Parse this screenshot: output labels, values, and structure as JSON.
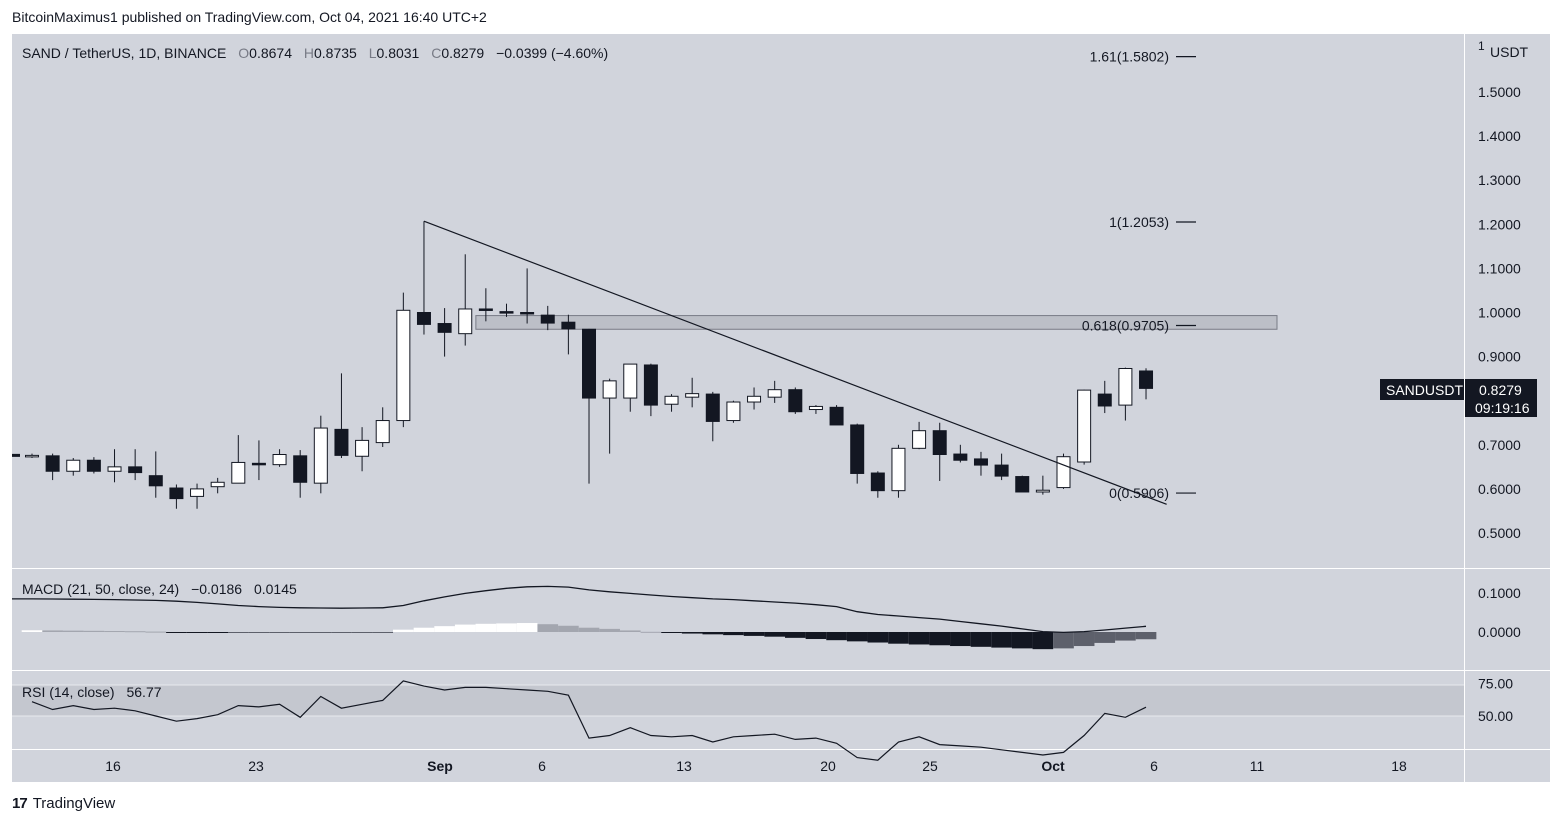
{
  "header": {
    "text": "BitcoinMaximus1 published on TradingView.com, Oct 04, 2021 16:40 UTC+2"
  },
  "footer": {
    "logo": "17",
    "brand": "TradingView"
  },
  "legend": {
    "symbol": "SAND / TetherUS, 1D, BINANCE",
    "o_label": "O",
    "o": "0.8674",
    "h_label": "H",
    "h": "0.8735",
    "l_label": "L",
    "l": "0.8031",
    "c_label": "C",
    "c": "0.8279",
    "change": "−0.0399 (−4.60%)"
  },
  "price_scale": {
    "unit": "USDT",
    "top_label": "1",
    "ticks": [
      "1.5000",
      "1.4000",
      "1.3000",
      "1.2000",
      "1.1000",
      "1.0000",
      "0.9000",
      "0.8000",
      "0.7000",
      "0.6000",
      "0.5000"
    ]
  },
  "last_price": {
    "symbol": "SANDUSDT",
    "value": "0.8279",
    "countdown": "09:19:16"
  },
  "fib_levels": [
    {
      "label": "1.61(1.5802)",
      "value": 1.5802
    },
    {
      "label": "1(1.2053)",
      "value": 1.2053
    },
    {
      "label": "0.618(0.9705)",
      "value": 0.9705
    },
    {
      "label": "0(0.5906)",
      "value": 0.5906
    }
  ],
  "x_axis": {
    "ticks": [
      "16",
      "23",
      "Sep",
      "6",
      "13",
      "20",
      "25",
      "Oct",
      "6",
      "11",
      "18"
    ]
  },
  "macd": {
    "label": "MACD (21, 50, close, 24)",
    "macd_value": "−0.0186",
    "signal_value": "0.0145",
    "ticks": [
      "0.1000",
      "0.0000"
    ]
  },
  "rsi": {
    "label": "RSI (14, close)",
    "value": "56.77",
    "ticks": [
      "75.00",
      "50.00"
    ]
  },
  "chart_data": {
    "type": "candlestick",
    "title": "SAND / TetherUS, 1D, BINANCE",
    "ylabel": "USDT",
    "ylim": [
      0.43,
      1.62
    ],
    "candles": [
      {
        "o": 0.676,
        "h": 0.68,
        "l": 0.67,
        "c": 0.676
      },
      {
        "o": 0.675,
        "h": 0.68,
        "l": 0.62,
        "c": 0.64
      },
      {
        "o": 0.64,
        "h": 0.67,
        "l": 0.63,
        "c": 0.665
      },
      {
        "o": 0.665,
        "h": 0.672,
        "l": 0.635,
        "c": 0.64
      },
      {
        "o": 0.64,
        "h": 0.69,
        "l": 0.615,
        "c": 0.65
      },
      {
        "o": 0.65,
        "h": 0.69,
        "l": 0.62,
        "c": 0.637
      },
      {
        "o": 0.63,
        "h": 0.685,
        "l": 0.58,
        "c": 0.607
      },
      {
        "o": 0.602,
        "h": 0.61,
        "l": 0.555,
        "c": 0.578
      },
      {
        "o": 0.583,
        "h": 0.612,
        "l": 0.555,
        "c": 0.6
      },
      {
        "o": 0.605,
        "h": 0.625,
        "l": 0.59,
        "c": 0.615
      },
      {
        "o": 0.613,
        "h": 0.722,
        "l": 0.613,
        "c": 0.66
      },
      {
        "o": 0.658,
        "h": 0.71,
        "l": 0.62,
        "c": 0.655
      },
      {
        "o": 0.655,
        "h": 0.69,
        "l": 0.65,
        "c": 0.678
      },
      {
        "o": 0.675,
        "h": 0.688,
        "l": 0.58,
        "c": 0.615
      },
      {
        "o": 0.613,
        "h": 0.766,
        "l": 0.59,
        "c": 0.738
      },
      {
        "o": 0.735,
        "h": 0.862,
        "l": 0.67,
        "c": 0.676
      },
      {
        "o": 0.674,
        "h": 0.74,
        "l": 0.64,
        "c": 0.71
      },
      {
        "o": 0.705,
        "h": 0.785,
        "l": 0.695,
        "c": 0.755
      },
      {
        "o": 0.755,
        "h": 1.045,
        "l": 0.74,
        "c": 1.005
      },
      {
        "o": 1.0,
        "h": 1.207,
        "l": 0.95,
        "c": 0.973
      },
      {
        "o": 0.975,
        "h": 1.01,
        "l": 0.9,
        "c": 0.955
      },
      {
        "o": 0.952,
        "h": 1.132,
        "l": 0.925,
        "c": 1.008
      },
      {
        "o": 1.008,
        "h": 1.055,
        "l": 0.98,
        "c": 1.005
      },
      {
        "o": 1.002,
        "h": 1.02,
        "l": 0.99,
        "c": 1.0
      },
      {
        "o": 1.0,
        "h": 1.1,
        "l": 0.975,
        "c": 0.998
      },
      {
        "o": 0.994,
        "h": 1.015,
        "l": 0.96,
        "c": 0.976
      },
      {
        "o": 0.978,
        "h": 0.995,
        "l": 0.905,
        "c": 0.963
      },
      {
        "o": 0.962,
        "h": 0.963,
        "l": 0.612,
        "c": 0.806
      },
      {
        "o": 0.806,
        "h": 0.85,
        "l": 0.68,
        "c": 0.845
      },
      {
        "o": 0.806,
        "h": 0.883,
        "l": 0.775,
        "c": 0.883
      },
      {
        "o": 0.881,
        "h": 0.884,
        "l": 0.765,
        "c": 0.79
      },
      {
        "o": 0.792,
        "h": 0.815,
        "l": 0.775,
        "c": 0.81
      },
      {
        "o": 0.808,
        "h": 0.852,
        "l": 0.785,
        "c": 0.816
      },
      {
        "o": 0.815,
        "h": 0.82,
        "l": 0.708,
        "c": 0.753
      },
      {
        "o": 0.755,
        "h": 0.8,
        "l": 0.75,
        "c": 0.797
      },
      {
        "o": 0.797,
        "h": 0.83,
        "l": 0.78,
        "c": 0.81
      },
      {
        "o": 0.808,
        "h": 0.845,
        "l": 0.795,
        "c": 0.825
      },
      {
        "o": 0.825,
        "h": 0.83,
        "l": 0.77,
        "c": 0.775
      },
      {
        "o": 0.78,
        "h": 0.79,
        "l": 0.77,
        "c": 0.787
      },
      {
        "o": 0.785,
        "h": 0.79,
        "l": 0.748,
        "c": 0.745
      },
      {
        "o": 0.745,
        "h": 0.748,
        "l": 0.612,
        "c": 0.635
      },
      {
        "o": 0.636,
        "h": 0.64,
        "l": 0.58,
        "c": 0.596
      },
      {
        "o": 0.596,
        "h": 0.7,
        "l": 0.58,
        "c": 0.692
      },
      {
        "o": 0.692,
        "h": 0.752,
        "l": 0.69,
        "c": 0.732
      },
      {
        "o": 0.732,
        "h": 0.75,
        "l": 0.618,
        "c": 0.678
      },
      {
        "o": 0.679,
        "h": 0.7,
        "l": 0.66,
        "c": 0.665
      },
      {
        "o": 0.668,
        "h": 0.684,
        "l": 0.63,
        "c": 0.654
      },
      {
        "o": 0.654,
        "h": 0.68,
        "l": 0.62,
        "c": 0.629
      },
      {
        "o": 0.628,
        "h": 0.63,
        "l": 0.593,
        "c": 0.593
      },
      {
        "o": 0.593,
        "h": 0.63,
        "l": 0.587,
        "c": 0.597
      },
      {
        "o": 0.603,
        "h": 0.68,
        "l": 0.6,
        "c": 0.673
      },
      {
        "o": 0.661,
        "h": 0.825,
        "l": 0.655,
        "c": 0.824
      },
      {
        "o": 0.815,
        "h": 0.845,
        "l": 0.772,
        "c": 0.788
      },
      {
        "o": 0.79,
        "h": 0.875,
        "l": 0.755,
        "c": 0.873
      },
      {
        "o": 0.8674,
        "h": 0.8735,
        "l": 0.8031,
        "c": 0.8279
      }
    ],
    "trendline": [
      {
        "i": 19,
        "v": 1.207
      },
      {
        "i": 55,
        "v": 0.565
      }
    ],
    "resistance_zone": [
      0.962,
      0.993
    ],
    "macd_histogram": [
      0.0045,
      0.004,
      0.0035,
      0.003,
      0.0025,
      0.002,
      0.001,
      -0.0012,
      -0.0018,
      -0.0022,
      -0.002,
      -0.0018,
      -0.0015,
      -0.0012,
      -0.0008,
      -0.0007,
      -0.0005,
      -0.0003,
      0.006,
      0.011,
      0.015,
      0.019,
      0.021,
      0.022,
      0.023,
      0.02,
      0.016,
      0.011,
      0.008,
      0.004,
      0.0005,
      -0.002,
      -0.004,
      -0.006,
      -0.008,
      -0.01,
      -0.012,
      -0.015,
      -0.018,
      -0.021,
      -0.024,
      -0.027,
      -0.03,
      -0.032,
      -0.034,
      -0.036,
      -0.038,
      -0.04,
      -0.042,
      -0.044,
      -0.042,
      -0.036,
      -0.028,
      -0.022,
      -0.0186
    ],
    "macd_line": [
      0.085,
      0.0845,
      0.084,
      0.0835,
      0.083,
      0.082,
      0.081,
      0.079,
      0.076,
      0.072,
      0.068,
      0.065,
      0.063,
      0.062,
      0.0615,
      0.061,
      0.0615,
      0.062,
      0.068,
      0.08,
      0.09,
      0.099,
      0.106,
      0.112,
      0.116,
      0.117,
      0.115,
      0.108,
      0.103,
      0.099,
      0.095,
      0.091,
      0.088,
      0.085,
      0.083,
      0.08,
      0.077,
      0.074,
      0.07,
      0.065,
      0.052,
      0.045,
      0.041,
      0.037,
      0.033,
      0.027,
      0.021,
      0.015,
      0.008,
      0.001,
      -0.001,
      0.001,
      0.005,
      0.01,
      0.0145
    ],
    "rsi_values": [
      61,
      55,
      58,
      55,
      56,
      54,
      50,
      46,
      48,
      51,
      58,
      57,
      59,
      49,
      65,
      56,
      59,
      62,
      77,
      73,
      70,
      72,
      72,
      71,
      70,
      69,
      66,
      33,
      35,
      41,
      35,
      34,
      35,
      30,
      34,
      35,
      36,
      32,
      33,
      29,
      18,
      16,
      30,
      34,
      28,
      27,
      26,
      24,
      22,
      20,
      22,
      35,
      52,
      49,
      56.77
    ]
  }
}
